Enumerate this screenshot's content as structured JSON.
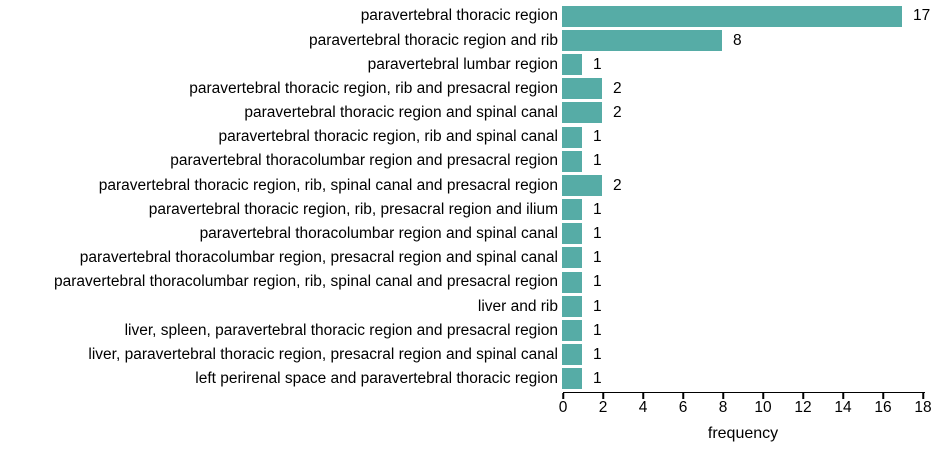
{
  "figure": {
    "background_color": "#ffffff",
    "text_color": "#000000",
    "axis_color": "#000000"
  },
  "chart_data": {
    "type": "bar",
    "orientation": "horizontal",
    "title": "",
    "xlabel": "frequency",
    "ylabel": "",
    "xlim": [
      0,
      18
    ],
    "xticks": [
      0,
      2,
      4,
      6,
      8,
      10,
      12,
      14,
      16,
      18
    ],
    "grid": false,
    "legend": "none",
    "bar_color": "#56aca6",
    "value_labels_shown": true,
    "categories": [
      "paravertebral thoracic region",
      "paravertebral thoracic region and rib",
      "paravertebral lumbar region",
      "paravertebral thoracic region, rib and presacral region",
      "paravertebral thoracic region and spinal canal",
      "paravertebral thoracic region, rib and spinal canal",
      "paravertebral thoracolumbar region and presacral region",
      "paravertebral thoracic region, rib, spinal canal and presacral region",
      "paravertebral thoracic region, rib, presacral region and ilium",
      "paravertebral thoracolumbar region and spinal canal",
      "paravertebral thoracolumbar region, presacral region and spinal canal",
      "paravertebral thoracolumbar region, rib, spinal canal and presacral region",
      "liver and rib",
      "liver, spleen, paravertebral thoracic region and presacral region",
      "liver, paravertebral thoracic region, presacral region and spinal canal",
      "left perirenal space and paravertebral thoracic region"
    ],
    "values": [
      17,
      8,
      1,
      2,
      2,
      1,
      1,
      2,
      1,
      1,
      1,
      1,
      1,
      1,
      1,
      1
    ]
  }
}
